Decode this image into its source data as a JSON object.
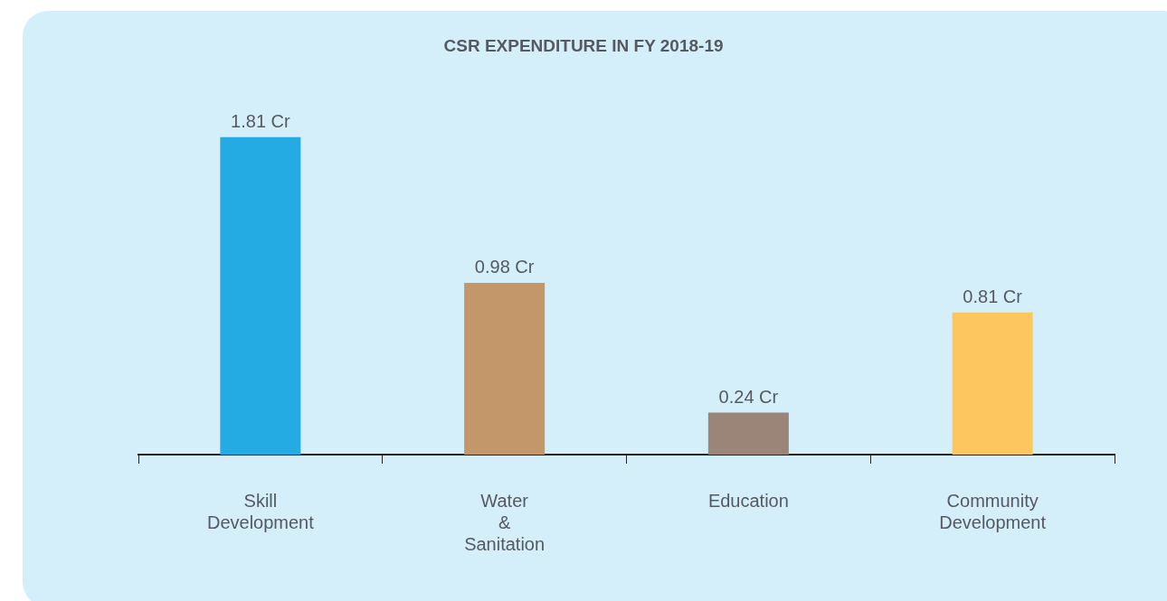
{
  "chart_data": {
    "type": "bar",
    "title": "CSR EXPENDITURE IN FY 2018-19",
    "categories": [
      "Skill Development",
      "Water & Sanitation",
      "Education",
      "Community Development"
    ],
    "values": [
      1.81,
      0.98,
      0.24,
      0.81
    ],
    "colors": [
      "#25abe4",
      "#c4976a",
      "#9a8578",
      "#fec65e"
    ],
    "value_labels": [
      "1.81 Cr",
      "0.98 Cr",
      "0.24 Cr",
      "0.81 Cr"
    ],
    "grid": false,
    "legend": false
  }
}
